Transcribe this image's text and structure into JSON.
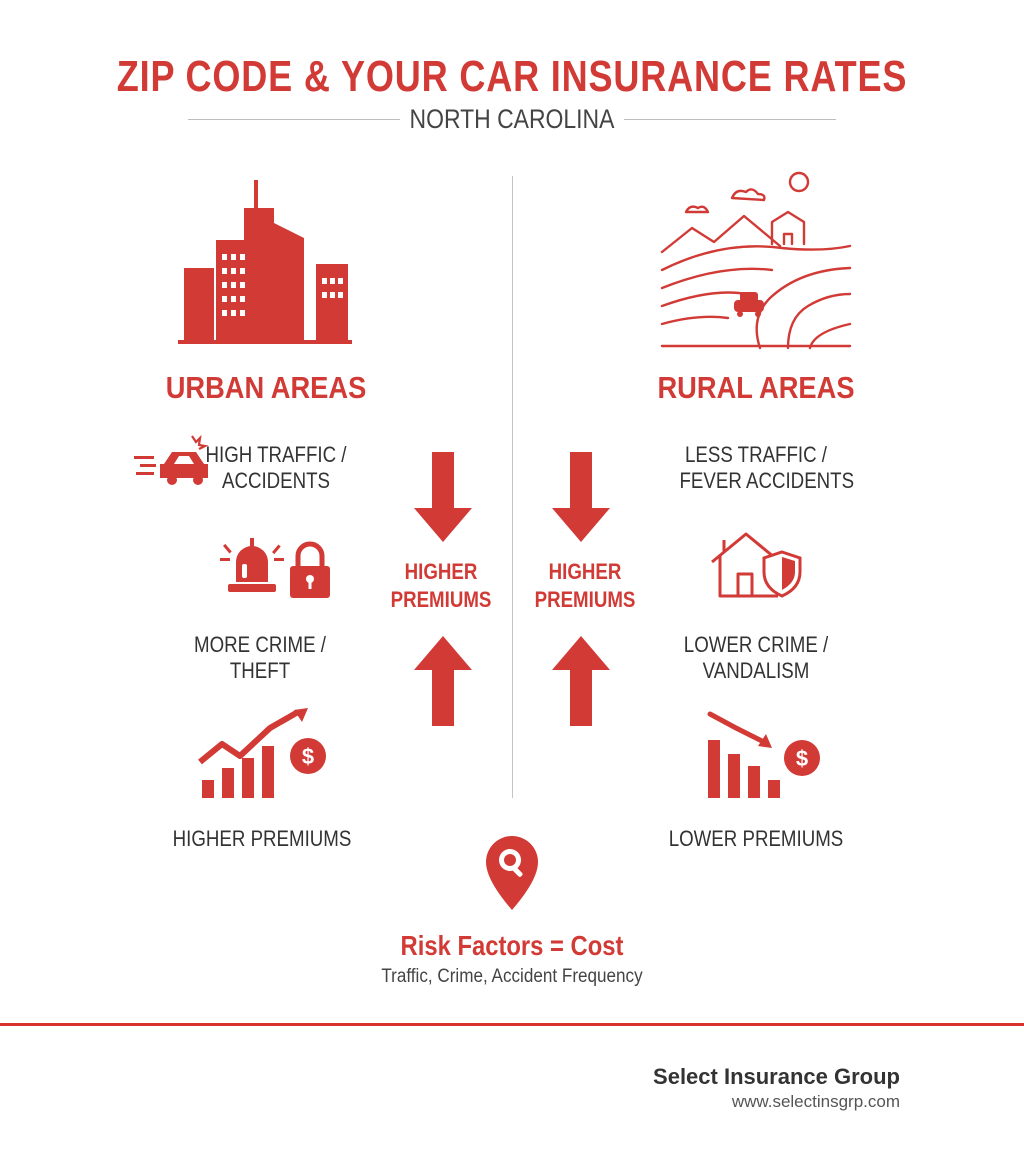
{
  "header": {
    "title": "ZIP CODE & YOUR CAR INSURANCE RATES",
    "subtitle": "NORTH CAROLINA"
  },
  "urban": {
    "title": "URBAN AREAS",
    "factors": [
      {
        "label_line1": "HIGH TRAFFIC /",
        "label_line2": "ACCIDENTS",
        "icon": "speeding-car-icon"
      },
      {
        "label_line1": "MORE CRIME /",
        "label_line2": "THEFT",
        "icon": "siren-lock-icon"
      },
      {
        "label_line1": "HIGHER PREMIUMS",
        "label_line2": "",
        "icon": "rising-chart-dollar-icon"
      }
    ],
    "icon": "city-skyline-icon"
  },
  "rural": {
    "title": "RURAL AREAS",
    "factors": [
      {
        "label_line1": "LESS TRAFFIC /",
        "label_line2": "FEVER ACCIDENTS",
        "icon": ""
      },
      {
        "label_line1": "LOWER CRIME /",
        "label_line2": "VANDALISM",
        "icon": "house-shield-icon"
      },
      {
        "label_line1": "LOWER PREMIUMS",
        "label_line2": "",
        "icon": "falling-chart-dollar-icon"
      }
    ],
    "icon": "rural-landscape-icon"
  },
  "middle": {
    "left_label_line1": "HIGHER",
    "left_label_line2": "PREMIUMS",
    "right_label_line1": "HIGHER",
    "right_label_line2": "PREMIUMS"
  },
  "risk": {
    "title": "Risk Factors = Cost",
    "subtitle": "Traffic, Crime, Accident Frequency",
    "icon": "location-search-pin-icon"
  },
  "footer": {
    "brand": "Select Insurance Group",
    "url": "www.selectinsgrp.com"
  },
  "colors": {
    "accent": "#d23a36",
    "text": "#333333",
    "divider": "#c4c4c4"
  }
}
